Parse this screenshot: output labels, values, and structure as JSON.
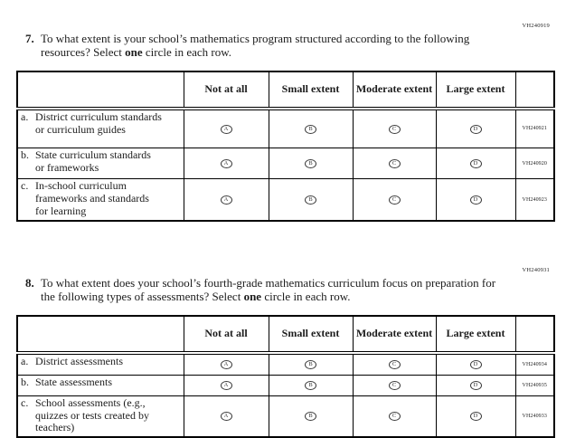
{
  "colors": {
    "background": "#ffffff",
    "border": "#000000",
    "text": "#1c1c1c"
  },
  "columns": [
    "Not at all",
    "Small extent",
    "Moderate extent",
    "Large extent"
  ],
  "bubble_letters": [
    "A",
    "B",
    "C",
    "D"
  ],
  "questions": [
    {
      "id_code": "VH240919",
      "number": "7.",
      "prompt_main": "To what extent is your school’s mathematics program structured according to the following resources? Select",
      "prompt_bold": "one",
      "prompt_tail": "circle in each row.",
      "rows": [
        {
          "letter": "a.",
          "label": "District curriculum standards or curriculum guides",
          "code": "VH240921"
        },
        {
          "letter": "b.",
          "label": "State curriculum standards or frameworks",
          "code": "VH240920"
        },
        {
          "letter": "c.",
          "label": "In-school curriculum frameworks and standards for learning",
          "code": "VH240923"
        }
      ]
    },
    {
      "id_code": "VH240931",
      "number": "8.",
      "prompt_main": "To what extent does your school’s fourth-grade mathematics curriculum focus on preparation for the following types of assessments? Select",
      "prompt_bold": "one",
      "prompt_tail": "circle in each row.",
      "rows": [
        {
          "letter": "a.",
          "label": "District assessments",
          "code": "VH240934"
        },
        {
          "letter": "b.",
          "label": "State assessments",
          "code": "VH240935"
        },
        {
          "letter": "c.",
          "label": "School assessments (e.g., quizzes or tests created by teachers)",
          "code": "VH240933"
        }
      ]
    }
  ]
}
